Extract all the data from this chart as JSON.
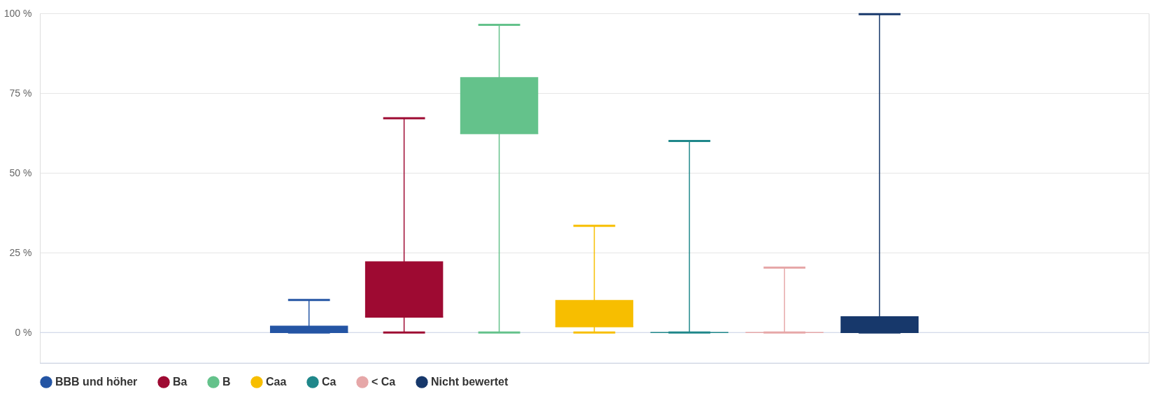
{
  "chart_data": {
    "type": "box",
    "categories": [
      null
    ],
    "ylim": [
      -9.6,
      100
    ],
    "yticks": [
      {
        "value": 0,
        "label": "0 %"
      },
      {
        "value": 25,
        "label": "25 %"
      },
      {
        "value": 50,
        "label": "50 %"
      },
      {
        "value": 75,
        "label": "75 %"
      },
      {
        "value": 100,
        "label": "100 %"
      }
    ],
    "grid": "y",
    "legend": "bottom",
    "tick_labels": "y",
    "series": [
      {
        "name": "BBB und höher",
        "color": "#2455a4",
        "boxes": [
          {
            "low": 0,
            "q1": 0,
            "median": 0,
            "q3": 2.1,
            "high": 10.2
          }
        ]
      },
      {
        "name": "Ba",
        "color": "#9e0a32",
        "boxes": [
          {
            "low": 0,
            "q1": 4.8,
            "median": 4.8,
            "q3": 22.3,
            "high": 67.1
          }
        ]
      },
      {
        "name": "B",
        "color": "#64c28b",
        "boxes": [
          {
            "low": 0,
            "q1": 62.3,
            "median": 62.3,
            "q3": 80.0,
            "high": 96.4
          }
        ]
      },
      {
        "name": "Caa",
        "color": "#f7be00",
        "boxes": [
          {
            "low": 0,
            "q1": 1.8,
            "median": 1.8,
            "q3": 10.2,
            "high": 33.4
          }
        ]
      },
      {
        "name": "Ca",
        "color": "#1f878a",
        "boxes": [
          {
            "low": 0,
            "q1": 0,
            "median": 0,
            "q3": 0,
            "high": 60.0
          }
        ]
      },
      {
        "name": "< Ca",
        "color": "#e6a7a8",
        "boxes": [
          {
            "low": 0,
            "q1": 0,
            "median": 0,
            "q3": 0,
            "high": 20.3
          }
        ]
      },
      {
        "name": "Nicht bewertet",
        "color": "#17386b",
        "boxes": [
          {
            "low": 0,
            "q1": 0,
            "median": 0,
            "q3": 5.1,
            "high": 99.7
          }
        ]
      }
    ]
  }
}
